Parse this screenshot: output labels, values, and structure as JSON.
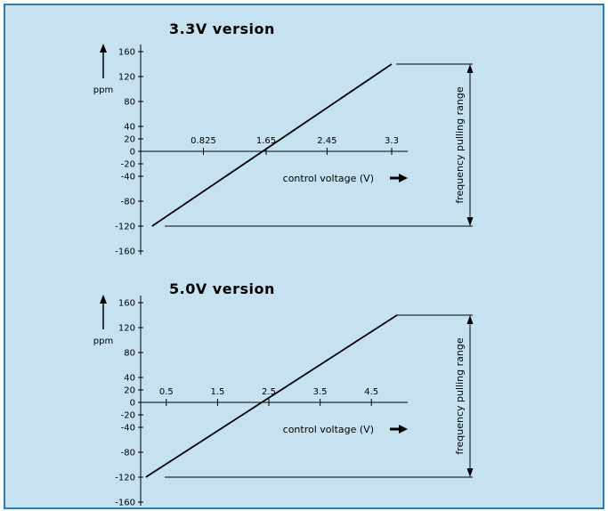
{
  "colors": {
    "background": "#c6e2f1",
    "frame": "#2f7db0",
    "ink": "#000000"
  },
  "chart_data": [
    {
      "type": "line",
      "title": "3.3V version",
      "xlabel": "control voltage (V)",
      "ylabel": "ppm",
      "annotation": "frequency pulling range",
      "x_ticks": [
        0.825,
        1.65,
        2.45,
        3.3
      ],
      "x_tick_labels": [
        "0.825",
        "1.65",
        "2.45",
        "3.3"
      ],
      "y_ticks": [
        160,
        120,
        80,
        40,
        20,
        0,
        -20,
        -40,
        -80,
        -120,
        -160
      ],
      "y_tick_labels": [
        "160",
        "120",
        "80",
        "40",
        "20",
        "0",
        "-20",
        "-40",
        "-80",
        "-120",
        "-160"
      ],
      "xlim": [
        0,
        3.3
      ],
      "series": [
        {
          "values": [
            {
              "x": 0.15,
              "y": -120
            },
            {
              "x": 3.3,
              "y": 140
            }
          ]
        }
      ]
    },
    {
      "type": "line",
      "title": "5.0V version",
      "xlabel": "control voltage (V)",
      "ylabel": "ppm",
      "annotation": "frequency pulling range",
      "x_ticks": [
        0.5,
        1.5,
        2.5,
        3.5,
        4.5
      ],
      "x_tick_labels": [
        "0.5",
        "1.5",
        "2.5",
        "3.5",
        "4.5"
      ],
      "y_ticks": [
        160,
        120,
        80,
        40,
        20,
        0,
        -20,
        -40,
        -80,
        -120,
        -160
      ],
      "y_tick_labels": [
        "160",
        "120",
        "80",
        "40",
        "20",
        "0",
        "-20",
        "-40",
        "-80",
        "-120",
        "-160"
      ],
      "xlim": [
        0,
        5
      ],
      "series": [
        {
          "values": [
            {
              "x": 0.1,
              "y": -120
            },
            {
              "x": 5.0,
              "y": 140
            }
          ]
        }
      ]
    }
  ]
}
